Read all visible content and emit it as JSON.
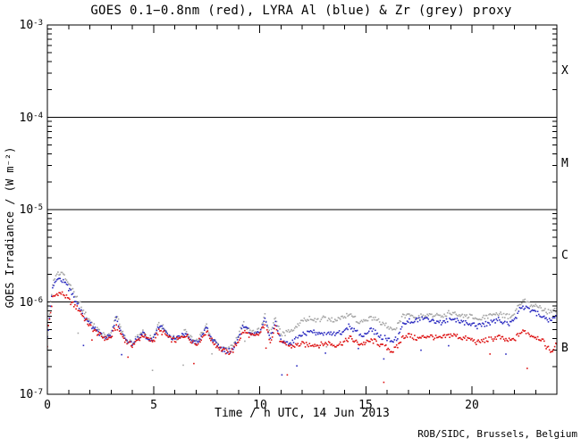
{
  "chart_data": {
    "type": "line",
    "title": "GOES 0.1−0.8nm (red), LYRA Al (blue) & Zr (grey) proxy",
    "xlabel": "Time / h UTC, 14 Jun 2013",
    "ylabel": "GOES Irradiance / (W m⁻²)",
    "footer": "ROB/SIDC, Brussels, Belgium",
    "x_range_h": [
      0,
      24
    ],
    "x_ticks": [
      "0",
      "5",
      "10",
      "15",
      "20"
    ],
    "x_tick_values": [
      0,
      5,
      10,
      15,
      20
    ],
    "x_major_tick_step_h": 5,
    "x_minor_tick_step_h": 1,
    "y_scale": "log",
    "y_range": [
      1e-07,
      0.001
    ],
    "y_ticks": [
      {
        "base": "10",
        "exp": "-3"
      },
      {
        "base": "10",
        "exp": "-4"
      },
      {
        "base": "10",
        "exp": "-5"
      },
      {
        "base": "10",
        "exp": "-6"
      },
      {
        "base": "10",
        "exp": "-7"
      }
    ],
    "grid": "off",
    "class_boundaries": [
      0.0001,
      1e-05,
      1e-06
    ],
    "flare_classes": [
      "X",
      "M",
      "C",
      "B"
    ],
    "value_unit": "1e-7 W m-2",
    "series": [
      {
        "name": "GOES 0.1-0.8nm (red)",
        "color": "#dd1111",
        "x_start_h": 0,
        "x_step_h": 0.25,
        "values": [
          4.5,
          11.0,
          12.5,
          12.2,
          10.5,
          9.2,
          8.2,
          6.6,
          5.5,
          4.8,
          4.3,
          4.0,
          4.1,
          5.5,
          4.4,
          3.6,
          3.4,
          3.8,
          4.4,
          3.9,
          3.8,
          4.8,
          4.6,
          4.0,
          3.8,
          4.0,
          4.4,
          3.9,
          3.5,
          4.0,
          4.8,
          3.8,
          3.3,
          3.0,
          2.8,
          3.0,
          3.8,
          4.8,
          4.4,
          4.2,
          4.5,
          5.8,
          3.8,
          5.5,
          3.6,
          3.4,
          3.3,
          3.4,
          3.5,
          3.4,
          3.5,
          3.4,
          3.5,
          3.6,
          3.4,
          3.5,
          3.7,
          4.1,
          3.7,
          3.5,
          3.6,
          3.8,
          3.7,
          3.3,
          3.2,
          2.9,
          3.3,
          4.2,
          4.4,
          4.1,
          4.0,
          4.2,
          4.3,
          4.1,
          4.0,
          4.2,
          4.4,
          4.3,
          4.1,
          4.0,
          3.9,
          3.6,
          3.8,
          3.9,
          4.0,
          4.2,
          3.9,
          3.8,
          3.9,
          4.6,
          4.8,
          4.4,
          4.2,
          4.0,
          3.3,
          2.9,
          3.5
        ]
      },
      {
        "name": "LYRA Al proxy (blue)",
        "color": "#2b2bc0",
        "x_start_h": 0,
        "x_step_h": 0.25,
        "values": [
          4.0,
          14.0,
          17.5,
          17.0,
          14.0,
          11.0,
          9.0,
          7.0,
          5.8,
          5.0,
          4.4,
          4.1,
          4.4,
          6.5,
          4.7,
          3.7,
          3.5,
          4.0,
          4.6,
          4.0,
          3.9,
          5.5,
          5.0,
          4.2,
          3.9,
          4.2,
          4.6,
          4.0,
          3.5,
          4.2,
          5.2,
          3.9,
          3.4,
          3.1,
          2.9,
          3.1,
          4.2,
          5.5,
          4.8,
          4.4,
          4.8,
          6.8,
          4.0,
          6.2,
          3.8,
          3.5,
          3.6,
          4.0,
          4.4,
          4.6,
          4.7,
          4.5,
          4.6,
          4.7,
          4.5,
          4.6,
          4.8,
          5.6,
          4.8,
          4.4,
          4.6,
          4.9,
          4.7,
          4.2,
          4.0,
          3.6,
          4.2,
          5.6,
          6.2,
          6.0,
          6.6,
          6.3,
          6.4,
          6.1,
          5.9,
          6.2,
          6.5,
          6.3,
          6.1,
          5.9,
          5.8,
          5.4,
          5.7,
          5.9,
          6.1,
          6.4,
          6.0,
          5.8,
          6.2,
          8.2,
          8.8,
          8.0,
          7.6,
          7.2,
          6.6,
          6.2,
          7.0
        ]
      },
      {
        "name": "LYRA Zr proxy (grey)",
        "color": "#a6a6a6",
        "x_start_h": 0,
        "x_step_h": 0.25,
        "values": [
          4.5,
          16.0,
          21.0,
          20.0,
          16.0,
          12.5,
          10.0,
          7.6,
          6.2,
          5.3,
          4.6,
          4.2,
          4.6,
          7.0,
          5.0,
          3.8,
          3.6,
          4.2,
          4.8,
          4.1,
          4.0,
          5.8,
          5.2,
          4.3,
          4.0,
          4.3,
          4.8,
          4.1,
          3.6,
          4.4,
          5.5,
          4.0,
          3.5,
          3.2,
          3.0,
          3.3,
          4.5,
          5.8,
          5.0,
          4.6,
          5.0,
          7.2,
          4.4,
          6.8,
          4.5,
          4.6,
          5.0,
          5.6,
          6.2,
          6.5,
          6.6,
          6.4,
          6.6,
          6.7,
          6.4,
          6.5,
          6.8,
          7.8,
          6.6,
          6.0,
          6.3,
          6.7,
          6.4,
          5.8,
          5.5,
          4.8,
          5.6,
          7.0,
          7.4,
          7.1,
          6.9,
          7.2,
          7.5,
          7.2,
          7.0,
          7.3,
          7.7,
          7.4,
          7.2,
          7.0,
          6.9,
          6.4,
          6.7,
          7.0,
          7.2,
          7.5,
          7.1,
          6.9,
          7.4,
          9.6,
          10.4,
          9.4,
          8.9,
          8.5,
          8.0,
          7.6,
          8.5
        ]
      }
    ]
  }
}
